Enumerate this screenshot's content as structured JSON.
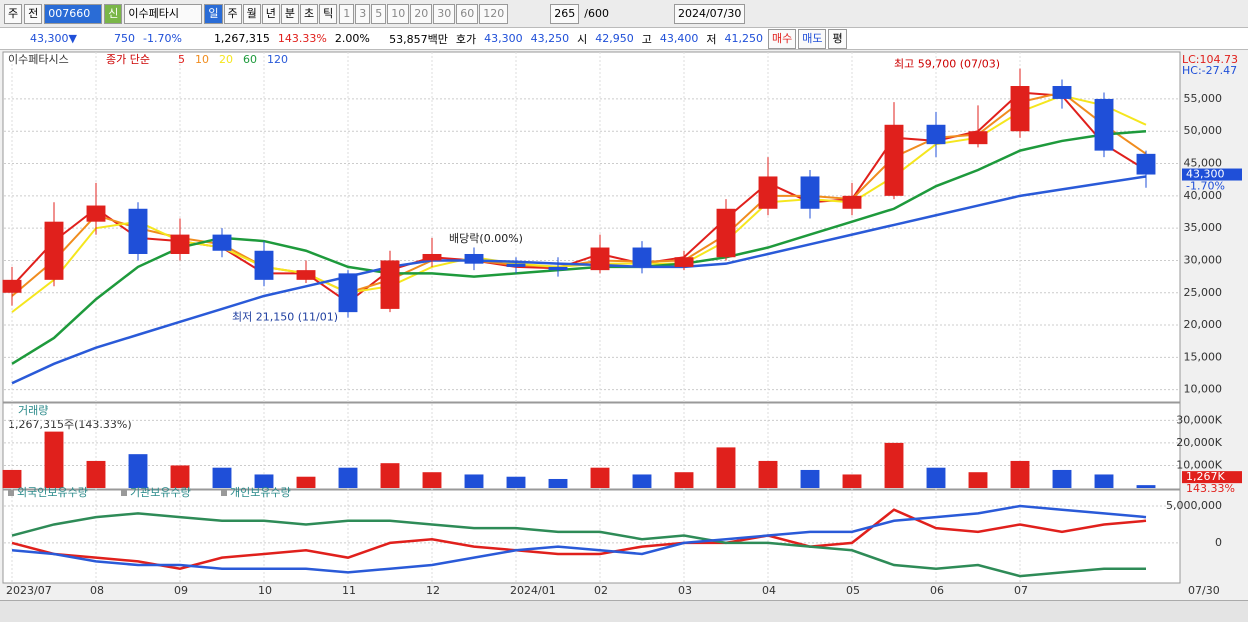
{
  "toolbar": {
    "period": "주",
    "prev": "전",
    "code": "007660",
    "badge": "신",
    "name": "이수페타시",
    "units": [
      "일",
      "주",
      "월",
      "년",
      "분",
      "초",
      "틱"
    ],
    "steps": [
      "1",
      "3",
      "5",
      "10",
      "20",
      "30",
      "60",
      "120"
    ],
    "count": "265",
    "count_max": "/600",
    "date": "2024/07/30"
  },
  "infobar": {
    "price": "43,300▼",
    "change": "750",
    "change_pct": "-1.70%",
    "volume": "1,267,315",
    "volume_pct": "143.33%",
    "turnover_pct": "2.00%",
    "amount": "53,857백만",
    "quote_label": "호가",
    "ask": "43,300",
    "bid": "43,250",
    "open_label": "시",
    "open": "42,950",
    "high_label": "고",
    "high": "43,400",
    "low_label": "저",
    "low": "41,250",
    "buy": "매수",
    "sell": "매도",
    "avg": "평"
  },
  "chart_data": [
    {
      "type": "candlestick",
      "title": "이수페타시스",
      "legend_title": "종가 단순",
      "categories": [
        "2023/07",
        null,
        "08",
        null,
        "09",
        null,
        "10",
        null,
        "11",
        null,
        "12",
        null,
        "2024/01",
        null,
        "02",
        null,
        "03",
        null,
        "04",
        null,
        "05",
        null,
        "06",
        null,
        "07",
        null,
        null,
        null
      ],
      "x_end_label": "07/30",
      "open": [
        25000,
        27000,
        36000,
        38000,
        31000,
        34000,
        31500,
        27000,
        28000,
        22500,
        30000,
        31000,
        29500,
        29000,
        28500,
        32000,
        29000,
        30500,
        38000,
        43000,
        38000,
        40000,
        51000,
        48000,
        50000,
        57000,
        55000,
        46500
      ],
      "high": [
        29000,
        39000,
        42000,
        39000,
        36500,
        35000,
        33000,
        30000,
        28500,
        31500,
        33500,
        32000,
        30500,
        30500,
        34000,
        33000,
        31500,
        39500,
        46000,
        44000,
        42000,
        54500,
        53000,
        54000,
        59700,
        58000,
        56000,
        47000
      ],
      "low": [
        23000,
        26000,
        34000,
        30000,
        30000,
        30500,
        26000,
        26500,
        21150,
        22000,
        29000,
        28500,
        28000,
        27500,
        28000,
        28000,
        28500,
        30000,
        37000,
        36500,
        37000,
        39500,
        46000,
        47500,
        49000,
        53500,
        46000,
        41250
      ],
      "close": [
        27000,
        36000,
        38500,
        31000,
        34000,
        31500,
        27000,
        28500,
        22000,
        30000,
        31000,
        29500,
        29000,
        28500,
        32000,
        29000,
        30500,
        38000,
        43000,
        38000,
        40000,
        51000,
        48000,
        50000,
        57000,
        55000,
        47000,
        43300
      ],
      "up_color": "#e0201c",
      "down_color": "#1f4fd8",
      "series": [
        {
          "name": "5",
          "color": "#e0201c",
          "values": [
            26000,
            33000,
            38000,
            33500,
            33000,
            32000,
            28000,
            28000,
            23500,
            28500,
            30500,
            30000,
            29000,
            28800,
            31000,
            29500,
            30500,
            36500,
            42000,
            39000,
            39500,
            49000,
            48500,
            50000,
            56000,
            55500,
            48000,
            44000
          ]
        },
        {
          "name": "10",
          "color": "#f08c1e",
          "values": [
            24500,
            30000,
            37000,
            35000,
            33500,
            32500,
            29000,
            28000,
            25000,
            27000,
            30000,
            30000,
            29300,
            29000,
            30000,
            29800,
            30000,
            34000,
            40000,
            40000,
            39500,
            46000,
            49000,
            49500,
            54500,
            56000,
            51000,
            46500
          ]
        },
        {
          "name": "20",
          "color": "#f5e61e",
          "values": [
            22000,
            27000,
            35000,
            36000,
            33000,
            32000,
            29000,
            28000,
            25000,
            26000,
            29000,
            30500,
            29500,
            29000,
            29500,
            29500,
            29500,
            33000,
            39000,
            39500,
            39000,
            43000,
            48000,
            49000,
            53000,
            55500,
            54000,
            51000
          ]
        },
        {
          "name": "60",
          "color": "#1e9a3c",
          "values": [
            14000,
            18000,
            24000,
            29000,
            32000,
            33500,
            33000,
            31500,
            29000,
            28000,
            28000,
            27500,
            28000,
            28500,
            29000,
            29000,
            29500,
            30500,
            32000,
            34000,
            36000,
            38000,
            41500,
            44000,
            47000,
            48500,
            49500,
            50000
          ]
        },
        {
          "name": "120",
          "color": "#2a5ad8",
          "values": [
            11000,
            14000,
            16500,
            18500,
            20500,
            22500,
            24500,
            26000,
            27500,
            29000,
            30000,
            30000,
            29800,
            29500,
            29300,
            29000,
            29000,
            29500,
            31000,
            32500,
            34000,
            35500,
            37000,
            38500,
            40000,
            41000,
            42000,
            43000
          ]
        }
      ],
      "ylim": [
        8400,
        61800
      ],
      "yticks": [
        {
          "value": 10000,
          "label": "10,000"
        },
        {
          "value": 15000,
          "label": "15,000"
        },
        {
          "value": 20000,
          "label": "20,000"
        },
        {
          "value": 25000,
          "label": "25,000"
        },
        {
          "value": 30000,
          "label": "30,000"
        },
        {
          "value": 35000,
          "label": "35,000"
        },
        {
          "value": 40000,
          "label": "40,000"
        },
        {
          "value": 45000,
          "label": "45,000"
        },
        {
          "value": 50000,
          "label": "50,000"
        },
        {
          "value": 55000,
          "label": "55,000"
        }
      ],
      "grid": true,
      "annotations": {
        "max": "최고 59,700 (07/03)",
        "min": "최저 21,150 (11/01)",
        "dividend": "배당락(0.00%)",
        "lc": "LC:104.73",
        "hc": "HC:-27.47",
        "last": "43,300",
        "last_pct": "-1.70%"
      }
    },
    {
      "type": "bar",
      "title": "거래량",
      "subtitle": "1,267,315주(143.33%)",
      "values": [
        8000,
        25000,
        12000,
        15000,
        10000,
        9000,
        6000,
        5000,
        9000,
        11000,
        7000,
        6000,
        5000,
        4000,
        9000,
        6000,
        7000,
        18000,
        12000,
        8000,
        6000,
        20000,
        9000,
        7000,
        12000,
        8000,
        6000,
        1267
      ],
      "ylim": [
        0,
        36800
      ],
      "yticks": [
        {
          "value": 10000,
          "label": "10,000K"
        },
        {
          "value": 20000,
          "label": "20,000K"
        },
        {
          "value": 30000,
          "label": "30,000K"
        }
      ],
      "grid": true,
      "last": "1,267K",
      "last_pct": "143.33%"
    },
    {
      "type": "line",
      "series": [
        {
          "name": "외국인보유수량",
          "color": "#e0201c",
          "values": [
            0,
            -1500000,
            -2000000,
            -2500000,
            -3500000,
            -2000000,
            -1500000,
            -1000000,
            -2000000,
            0,
            500000,
            -500000,
            -1000000,
            -1500000,
            -1500000,
            -500000,
            0,
            0,
            1000000,
            -500000,
            0,
            4500000,
            2000000,
            1500000,
            2500000,
            1500000,
            2500000,
            3000000
          ]
        },
        {
          "name": "기관보유수량",
          "color": "#2e8b57",
          "values": [
            1000000,
            2500000,
            3500000,
            4000000,
            3500000,
            3000000,
            3000000,
            2500000,
            3000000,
            3000000,
            2500000,
            2000000,
            2000000,
            1500000,
            1500000,
            500000,
            1000000,
            0,
            0,
            -500000,
            -1000000,
            -3000000,
            -3500000,
            -3000000,
            -4500000,
            -4000000,
            -3500000,
            -3500000
          ]
        },
        {
          "name": "개인보유수량",
          "color": "#2a5ad8",
          "values": [
            -1000000,
            -1500000,
            -2500000,
            -3000000,
            -3000000,
            -3500000,
            -3500000,
            -3500000,
            -4000000,
            -3500000,
            -3000000,
            -2000000,
            -1000000,
            -500000,
            -1000000,
            -1500000,
            0,
            500000,
            1000000,
            1500000,
            1500000,
            3000000,
            3500000,
            4000000,
            5000000,
            4500000,
            4000000,
            3500000
          ]
        }
      ],
      "ylim": [
        -5300000,
        6900000
      ],
      "yticks": [
        {
          "value": 5000000,
          "label": "5,000,000"
        },
        0
      ],
      "grid": true
    }
  ]
}
